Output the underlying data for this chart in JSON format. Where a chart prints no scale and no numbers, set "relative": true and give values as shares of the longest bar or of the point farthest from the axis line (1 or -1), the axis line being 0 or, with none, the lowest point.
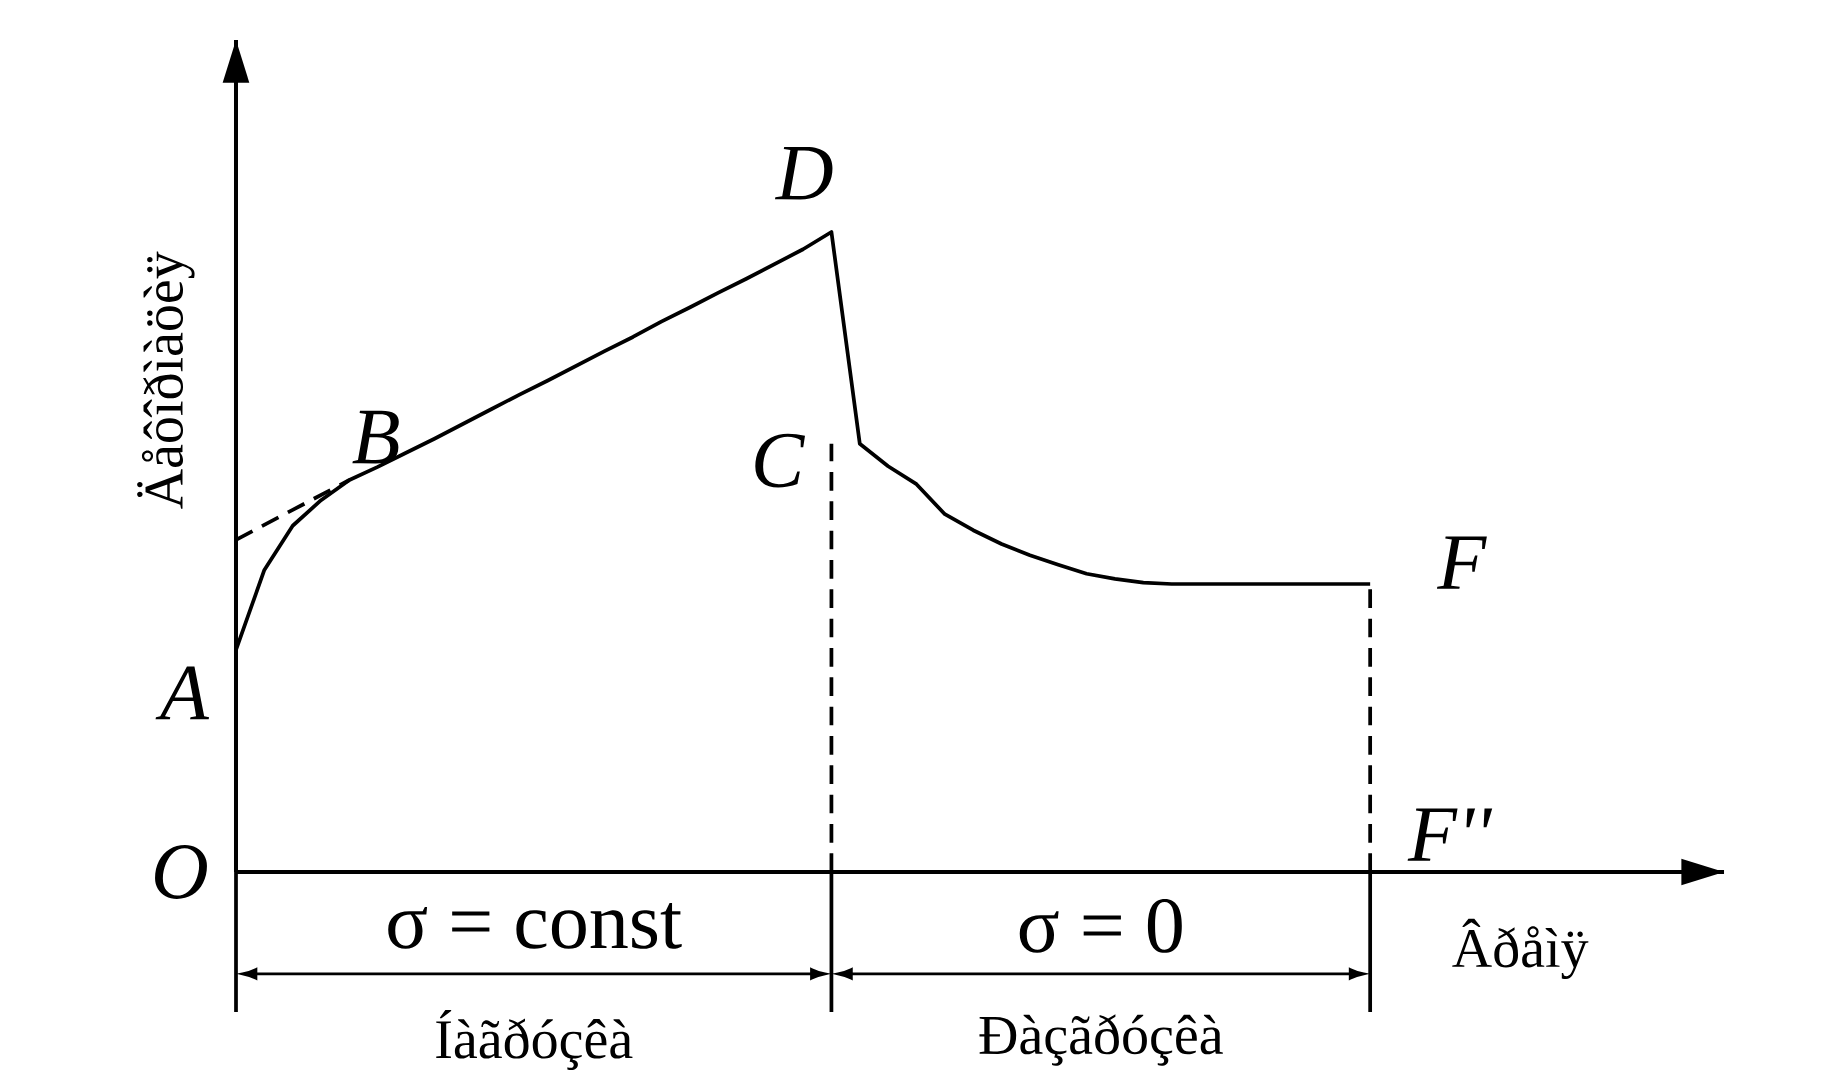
{
  "chart_data": {
    "type": "line",
    "relative": true,
    "ylabel": "Äåôîðìàöèÿ",
    "xlabel": "Âðåìÿ",
    "line_style": "solid",
    "marker": "none",
    "categories": [
      null,
      null,
      null,
      null,
      null,
      null,
      null,
      null,
      null,
      null,
      null,
      null,
      null,
      null,
      null,
      null,
      null,
      null,
      null,
      null,
      null,
      null,
      null,
      null,
      null,
      null,
      null,
      null,
      null,
      null,
      null,
      null,
      null,
      null,
      null,
      null,
      null,
      null,
      null,
      null,
      null
    ],
    "series": [
      {
        "color": "#000000",
        "values": [
          0.347,
          0.472,
          0.541,
          0.581,
          0.6125,
          0.633,
          0.655,
          0.677,
          0.7,
          0.723,
          0.746,
          0.768,
          0.791,
          0.814,
          0.836,
          0.86,
          0.882,
          0.905,
          0.927,
          0.95,
          0.973,
          1.0,
          0.669,
          0.634,
          0.606,
          0.559,
          0.534,
          0.5125,
          0.495,
          0.48,
          0.466,
          0.458,
          0.452,
          0.45,
          0.45,
          0.45,
          0.45,
          0.45,
          0.45,
          0.45,
          0.45
        ]
      },
      {
        "color": "#000000",
        "line_style": "dashed",
        "values": [
          0.519,
          null,
          null,
          null,
          0.6125,
          null,
          null,
          null,
          null,
          null,
          null,
          null,
          null,
          null,
          null,
          null,
          null,
          null,
          null,
          null,
          null,
          null,
          null,
          null,
          null,
          null,
          null,
          null,
          null,
          null,
          null,
          null,
          null,
          null,
          null,
          null,
          null,
          null,
          null,
          null,
          null
        ]
      }
    ],
    "annotations": [
      "O",
      "A",
      "B",
      "C",
      "D",
      "F",
      "F''",
      "σ = const",
      "Íàãðóçêà",
      "σ = 0",
      "Ðàçãðóçêà"
    ]
  }
}
